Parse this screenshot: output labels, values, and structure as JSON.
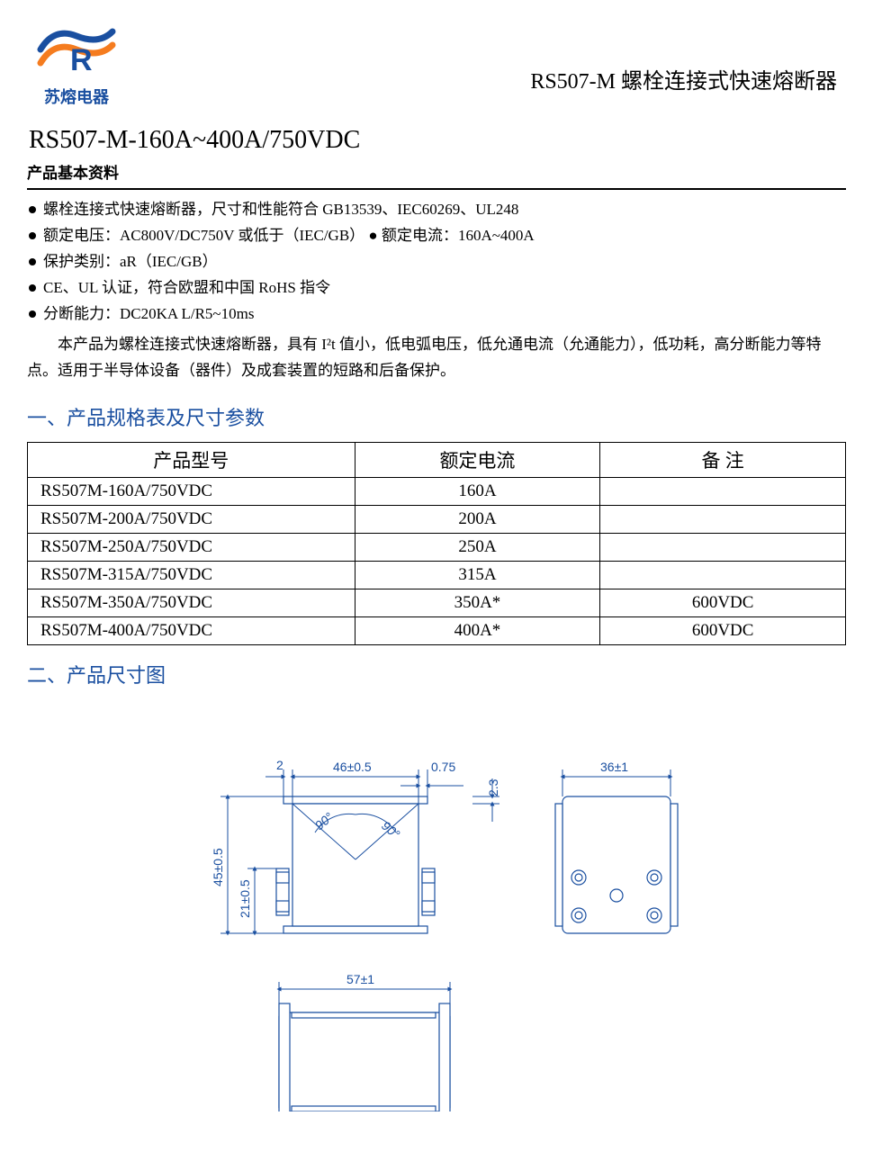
{
  "header": {
    "logo_text": "苏熔电器",
    "page_title": "RS507-M 螺栓连接式快速熔断器"
  },
  "model": {
    "title": "RS507-M-160A~400A/750VDC",
    "subhead": "产品基本资料"
  },
  "bullets": [
    "螺栓连接式快速熔断器，尺寸和性能符合 GB13539、IEC60269、UL248",
    "额定电压：AC800V/DC750V 或低于（IEC/GB）  ●  额定电流：160A~400A",
    "保护类别：aR（IEC/GB）",
    "CE、UL 认证，符合欧盟和中国 RoHS 指令",
    "分断能力：DC20KA L/R5~10ms"
  ],
  "description": "本产品为螺栓连接式快速熔断器，具有 I²t 值小，低电弧电压，低允通电流（允通能力），低功耗，高分断能力等特点。适用于半导体设备（器件）及成套装置的短路和后备保护。",
  "section1_title": "一、产品规格表及尺寸参数",
  "table": {
    "columns": [
      "产品型号",
      "额定电流",
      "备    注"
    ],
    "rows": [
      [
        "RS507M-160A/750VDC",
        "160A",
        ""
      ],
      [
        "RS507M-200A/750VDC",
        "200A",
        ""
      ],
      [
        "RS507M-250A/750VDC",
        "250A",
        ""
      ],
      [
        "RS507M-315A/750VDC",
        "315A",
        ""
      ],
      [
        "RS507M-350A/750VDC",
        "350A*",
        "600VDC"
      ],
      [
        "RS507M-400A/750VDC",
        "400A*",
        "600VDC"
      ]
    ]
  },
  "section2_title": "二、产品尺寸图",
  "dims": {
    "d1": "2",
    "d2": "46±0.5",
    "d3": "0.75",
    "d4": "2.3",
    "d5": "36±1",
    "d6": "45±0.5",
    "d7": "21±0.5",
    "d8": "57±1",
    "a1": "90°",
    "a2": "90°"
  },
  "colors": {
    "blue": "#1a4fa0",
    "orange": "#f57c1f"
  }
}
